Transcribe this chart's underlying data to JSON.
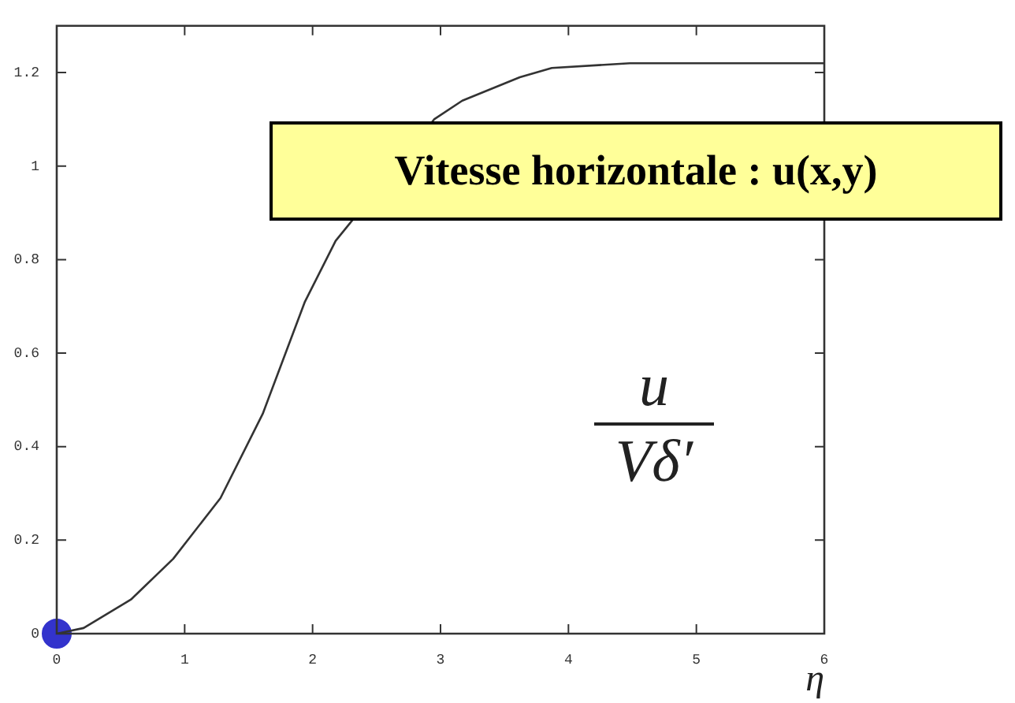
{
  "chart_data": {
    "type": "line",
    "title": "Vitesse horizontale : u(x,y)",
    "xlabel": "η",
    "annotations": [
      "u",
      "Vδ′"
    ],
    "xlim": [
      0,
      6
    ],
    "xticks": [
      0,
      1,
      2,
      3,
      4,
      5,
      6
    ],
    "ylim": [
      0,
      1.3
    ],
    "yticks": [
      0,
      0.2,
      0.4,
      0.6,
      0.8,
      1,
      1.2
    ],
    "grid": false,
    "legend": false,
    "marker": "none",
    "line_style": "solid",
    "series": [
      {
        "color": "#333333",
        "x": [
          0,
          0.21,
          0.58,
          0.91,
          1.28,
          1.61,
          1.94,
          2.18,
          2.95,
          3.17,
          3.62,
          3.87,
          4.48,
          5,
          6
        ],
        "values": [
          0,
          0.012,
          0.073,
          0.16,
          0.29,
          0.47,
          0.71,
          0.84,
          1.1,
          1.14,
          1.19,
          1.21,
          1.22,
          1.22,
          1.22
        ]
      },
      {
        "type": "scatter",
        "marker": "circle",
        "color": "#3333cc",
        "x": [
          0
        ],
        "values": [
          0
        ]
      }
    ]
  }
}
